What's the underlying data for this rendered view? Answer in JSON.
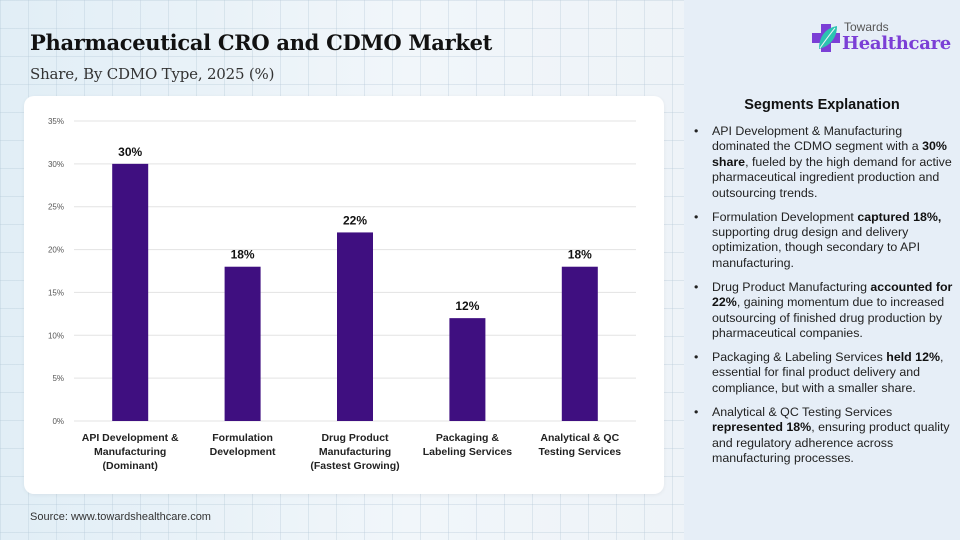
{
  "header": {
    "title": "Pharmaceutical CRO and CDMO Market",
    "subtitle": "Share, By CDMO Type, 2025 (%)"
  },
  "logo": {
    "top_text": "Towards",
    "bottom_text": "Healthcare",
    "icon": "medical-cross-leaf-icon",
    "colors": {
      "cross": "#7b3fd6",
      "leaf": "#2cc4b0",
      "text": "#7b3fd6"
    }
  },
  "source": "Source: www.towardshealthcare.com",
  "colors": {
    "bar": "#3f0f80",
    "grid": "#e3e3e3"
  },
  "chart_data": {
    "type": "bar",
    "title": "Pharmaceutical CRO and CDMO Market",
    "subtitle": "Share, By CDMO Type, 2025 (%)",
    "xlabel": "",
    "ylabel": "",
    "categories": [
      [
        "API Development &",
        "Manufacturing",
        "(Dominant)"
      ],
      [
        "Formulation",
        "Development"
      ],
      [
        "Drug Product",
        "Manufacturing",
        "(Fastest Growing)"
      ],
      [
        "Packaging &",
        "Labeling Services"
      ],
      [
        "Analytical & QC",
        "Testing Services"
      ]
    ],
    "values": [
      30,
      18,
      22,
      12,
      18
    ],
    "data_labels": [
      "30%",
      "18%",
      "22%",
      "12%",
      "18%"
    ],
    "ylim": [
      0,
      35
    ],
    "yticks": [
      0,
      5,
      10,
      15,
      20,
      25,
      30,
      35
    ],
    "ytick_labels": [
      "0%",
      "5%",
      "10%",
      "15%",
      "20%",
      "25%",
      "30%",
      "35%"
    ],
    "grid": true,
    "legend": "none"
  },
  "segments": {
    "title": "Segments Explanation",
    "items": [
      {
        "parts": [
          {
            "t": "API Development & Manufacturing dominated the CDMO segment with a "
          },
          {
            "t": "30% share",
            "b": true
          },
          {
            "t": ", fueled by the high demand for active pharmaceutical ingredient production and outsourcing trends."
          }
        ]
      },
      {
        "parts": [
          {
            "t": "Formulation Development "
          },
          {
            "t": "captured 18%,",
            "b": true
          },
          {
            "t": " supporting drug design and delivery optimization, though secondary to API manufacturing."
          }
        ]
      },
      {
        "parts": [
          {
            "t": "Drug Product Manufacturing "
          },
          {
            "t": "accounted for 22%",
            "b": true
          },
          {
            "t": ", gaining momentum due to increased outsourcing of finished drug production by pharmaceutical companies."
          }
        ]
      },
      {
        "parts": [
          {
            "t": "Packaging & Labeling Services "
          },
          {
            "t": "held 12%",
            "b": true
          },
          {
            "t": ", essential for final product delivery and compliance, but with a smaller share."
          }
        ]
      },
      {
        "parts": [
          {
            "t": "Analytical & QC Testing Services "
          },
          {
            "t": "represented 18%",
            "b": true
          },
          {
            "t": ", ensuring product quality and regulatory adherence across manufacturing processes."
          }
        ]
      }
    ]
  }
}
